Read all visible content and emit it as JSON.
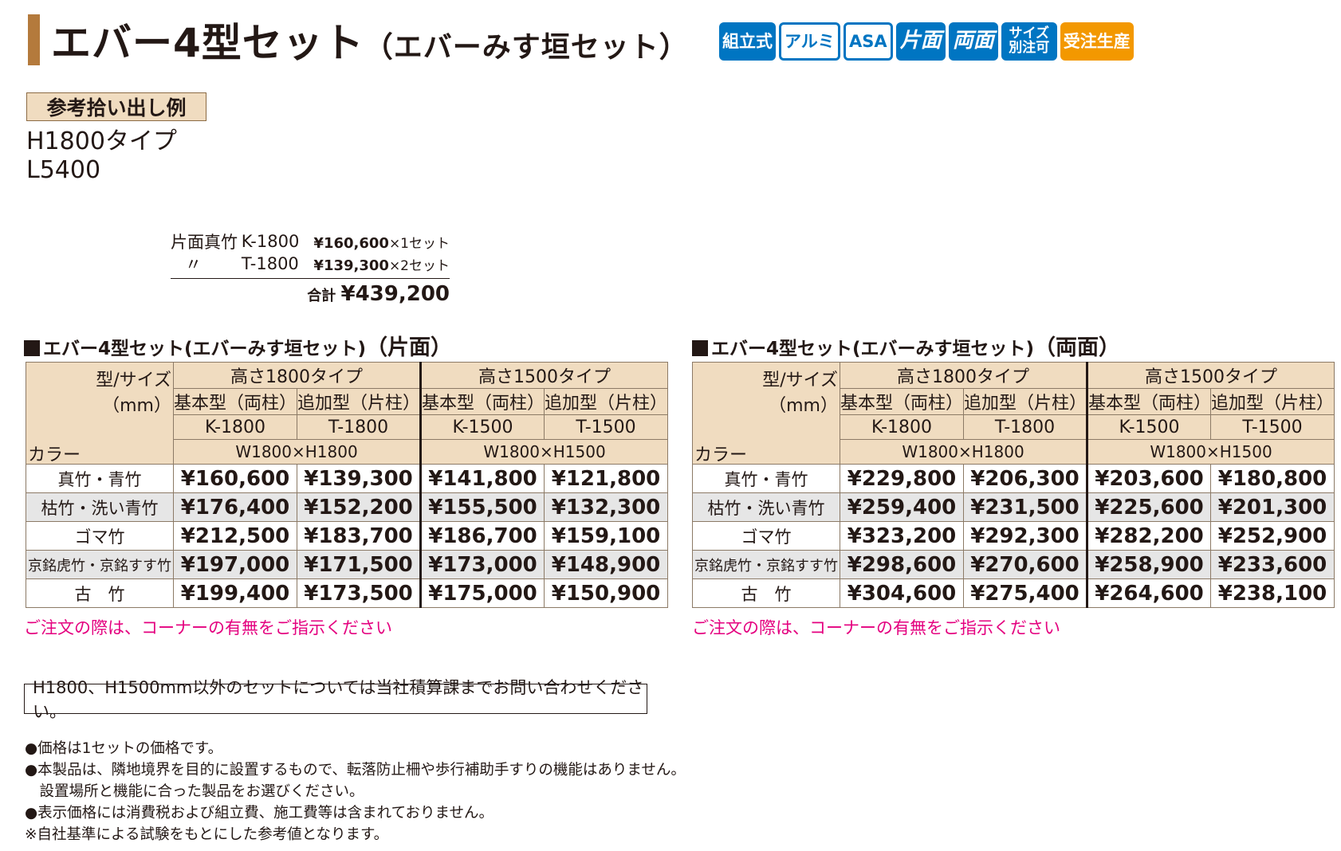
{
  "header": {
    "title_main": "エバー4型セット",
    "title_sub": "（エバーみす垣セット）",
    "badges": [
      "組立式",
      "アルミ",
      "ASA",
      "片面",
      "両面",
      "サイズ別注可",
      "受注生産"
    ]
  },
  "example": {
    "label": "参考拾い出し例",
    "type_line": "H1800タイプ",
    "length_line": "L5400",
    "rows": [
      {
        "name": "片面真竹",
        "model": "K-1800",
        "price": "¥160,600",
        "qty": "×1セット"
      },
      {
        "name": "〃",
        "model": "T-1800",
        "price": "¥139,300",
        "qty": "×2セット"
      }
    ],
    "total_label": "合計",
    "total_value": "¥439,200"
  },
  "tables": [
    {
      "title": "エバー4型セット(エバーみす垣セット)",
      "variant": "（片面）",
      "corner_top": "型/サイズ",
      "corner_mm": "（mm）",
      "corner_color": "カラー",
      "group_1800": "高さ1800タイプ",
      "group_1500": "高さ1500タイプ",
      "sub_labels": [
        "基本型（両柱）",
        "追加型（片柱）",
        "基本型（両柱）",
        "追加型（片柱）"
      ],
      "models": [
        "K-1800",
        "T-1800",
        "K-1500",
        "T-1500"
      ],
      "dims": [
        "W1800×H1800",
        "W1800×H1500"
      ],
      "rows": [
        {
          "color": "真竹・青竹",
          "prices": [
            "¥160,600",
            "¥139,300",
            "¥141,800",
            "¥121,800"
          ]
        },
        {
          "color": "枯竹・洗い青竹",
          "prices": [
            "¥176,400",
            "¥152,200",
            "¥155,500",
            "¥132,300"
          ]
        },
        {
          "color": "ゴマ竹",
          "prices": [
            "¥212,500",
            "¥183,700",
            "¥186,700",
            "¥159,100"
          ]
        },
        {
          "color": "京銘虎竹・京銘すす竹",
          "prices": [
            "¥197,000",
            "¥171,500",
            "¥173,000",
            "¥148,900"
          ]
        },
        {
          "color": "古　竹",
          "prices": [
            "¥199,400",
            "¥173,500",
            "¥175,000",
            "¥150,900"
          ]
        }
      ],
      "note": "ご注文の際は、コーナーの有無をご指示ください"
    },
    {
      "title": "エバー4型セット(エバーみす垣セット)",
      "variant": "（両面）",
      "corner_top": "型/サイズ",
      "corner_mm": "（mm）",
      "corner_color": "カラー",
      "group_1800": "高さ1800タイプ",
      "group_1500": "高さ1500タイプ",
      "sub_labels": [
        "基本型（両柱）",
        "追加型（片柱）",
        "基本型（両柱）",
        "追加型（片柱）"
      ],
      "models": [
        "K-1800",
        "T-1800",
        "K-1500",
        "T-1500"
      ],
      "dims": [
        "W1800×H1800",
        "W1800×H1500"
      ],
      "rows": [
        {
          "color": "真竹・青竹",
          "prices": [
            "¥229,800",
            "¥206,300",
            "¥203,600",
            "¥180,800"
          ]
        },
        {
          "color": "枯竹・洗い青竹",
          "prices": [
            "¥259,400",
            "¥231,500",
            "¥225,600",
            "¥201,300"
          ]
        },
        {
          "color": "ゴマ竹",
          "prices": [
            "¥323,200",
            "¥292,300",
            "¥282,200",
            "¥252,900"
          ]
        },
        {
          "color": "京銘虎竹・京銘すす竹",
          "prices": [
            "¥298,600",
            "¥270,600",
            "¥258,900",
            "¥233,600"
          ]
        },
        {
          "color": "古　竹",
          "prices": [
            "¥304,600",
            "¥275,400",
            "¥264,600",
            "¥238,100"
          ]
        }
      ],
      "note": "ご注文の際は、コーナーの有無をご指示ください"
    }
  ],
  "notice": "H1800、H1500mm以外のセットについては当社積算課までお問い合わせください。",
  "footnotes": [
    "●価格は1セットの価格です。",
    "●本製品は、隣地境界を目的に設置するもので、転落防止柵や歩行補助手すりの機能はありません。",
    "　設置場所と機能に合った製品をお選びください。",
    "●表示価格には消費税および組立費、施工費等は含まれておりません。",
    "※自社基準による試験をもとにした参考値となります。"
  ],
  "colors": {
    "accent_bar": "#b47a3c",
    "badge_blue": "#0075c2",
    "badge_orange": "#f39800",
    "header_bg": "#f0dcc0",
    "note_red": "#e4007f"
  }
}
